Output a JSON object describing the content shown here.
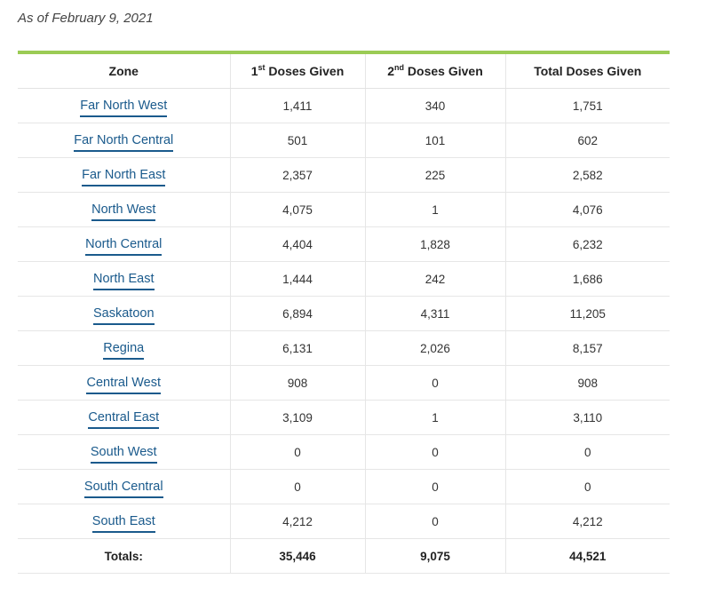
{
  "as_of": "As of February 9, 2021",
  "table": {
    "headers": {
      "zone": "Zone",
      "first_prefix": "1",
      "first_sup": "st",
      "first_suffix": " Doses Given",
      "second_prefix": "2",
      "second_sup": "nd",
      "second_suffix": " Doses Given",
      "total": "Total Doses Given"
    },
    "rows": [
      {
        "zone": "Far North West",
        "first": "1,411",
        "second": "340",
        "total": "1,751"
      },
      {
        "zone": "Far North Central",
        "first": "501",
        "second": "101",
        "total": "602"
      },
      {
        "zone": "Far North East",
        "first": "2,357",
        "second": "225",
        "total": "2,582"
      },
      {
        "zone": "North West",
        "first": "4,075",
        "second": "1",
        "total": "4,076"
      },
      {
        "zone": "North Central",
        "first": "4,404",
        "second": "1,828",
        "total": "6,232"
      },
      {
        "zone": "North East",
        "first": "1,444",
        "second": "242",
        "total": "1,686"
      },
      {
        "zone": "Saskatoon",
        "first": "6,894",
        "second": "4,311",
        "total": "11,205"
      },
      {
        "zone": "Regina",
        "first": "6,131",
        "second": "2,026",
        "total": "8,157"
      },
      {
        "zone": "Central West",
        "first": "908",
        "second": "0",
        "total": "908"
      },
      {
        "zone": "Central East",
        "first": "3,109",
        "second": "1",
        "total": "3,110"
      },
      {
        "zone": "South West",
        "first": "0",
        "second": "0",
        "total": "0"
      },
      {
        "zone": "South Central",
        "first": "0",
        "second": "0",
        "total": "0"
      },
      {
        "zone": "South East",
        "first": "4,212",
        "second": "0",
        "total": "4,212"
      }
    ],
    "totals": {
      "label": "Totals:",
      "first": "35,446",
      "second": "9,075",
      "total": "44,521"
    }
  },
  "colors": {
    "accent_rule": "#9bcb55",
    "link": "#1a5a8c"
  }
}
